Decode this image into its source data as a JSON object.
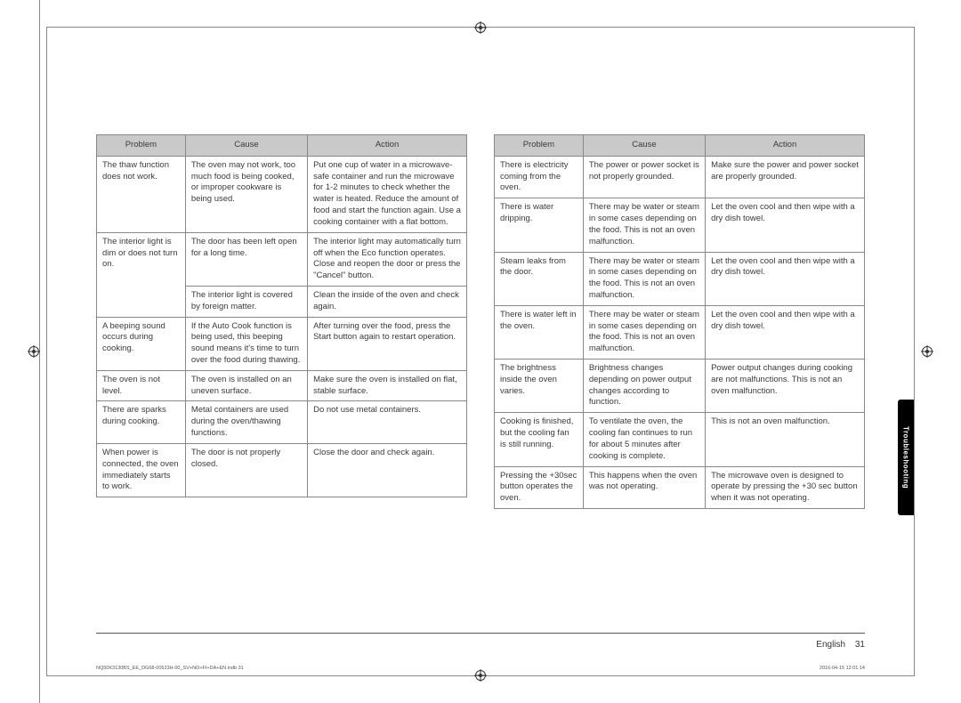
{
  "headers": {
    "problem": "Problem",
    "cause": "Cause",
    "action": "Action"
  },
  "left_table": [
    {
      "problem": "The thaw function does not work.",
      "cause": "The oven may not work, too much food is being cooked, or improper cookware is being used.",
      "action": "Put one cup of water in a microwave-safe container and run the microwave for 1-2 minutes to check whether the water is heated. Reduce the amount of food and start the function again. Use a cooking container with a flat bottom."
    },
    {
      "problem": "The interior light is dim or does not turn on.",
      "rowspan_problem": 2,
      "cause": "The door has been left open for a long time.",
      "action": "The interior light may automatically turn off when the Eco function operates. Close and reopen the door or press the \"Cancel\" button."
    },
    {
      "cause": "The interior light is covered by foreign matter.",
      "action": "Clean the inside of the oven and check again."
    },
    {
      "problem": "A beeping sound occurs during cooking.",
      "cause": "If the Auto Cook function is being used, this beeping sound means it's time to turn over the food during thawing.",
      "action": "After turning over the food, press the Start button again to restart operation."
    },
    {
      "problem": "The oven is not level.",
      "cause": "The oven is installed on an uneven surface.",
      "action": "Make sure the oven is installed on flat, stable surface."
    },
    {
      "problem": "There are sparks during cooking.",
      "cause": "Metal containers are used during the oven/thawing functions.",
      "action": "Do not use metal containers."
    },
    {
      "problem": "When power is connected, the oven immediately starts to work.",
      "cause": "The door is not properly closed.",
      "action": "Close the door and check again."
    }
  ],
  "right_table": [
    {
      "problem": "There is electricity coming from the oven.",
      "cause": "The power or power socket is not properly grounded.",
      "action": "Make sure the power and power socket are properly grounded."
    },
    {
      "problem": "There is water dripping.",
      "cause": "There may be water or steam in some cases depending on the food. This is not an oven malfunction.",
      "action": "Let the oven cool and then wipe with a dry dish towel."
    },
    {
      "problem": "Steam leaks from the door.",
      "cause": "There may be water or steam in some cases depending on the food. This is not an oven malfunction.",
      "action": "Let the oven cool and then wipe with a dry dish towel."
    },
    {
      "problem": "There is water left in the oven.",
      "cause": "There may be water or steam in some cases depending on the food. This is not an oven malfunction.",
      "action": "Let the oven cool and then wipe with a dry dish towel."
    },
    {
      "problem": "The brightness inside the oven varies.",
      "cause": "Brightness changes depending on power output changes according to function.",
      "action": "Power output changes during cooking are not malfunctions. This is not an oven malfunction."
    },
    {
      "problem": "Cooking is finished, but the cooling fan is still running.",
      "cause": "To ventilate the oven, the cooling fan continues to run for about 5 minutes after cooking is complete.",
      "action": "This is not an oven malfunction."
    },
    {
      "problem": "Pressing the +30sec button operates the oven.",
      "cause": "This happens when the oven was not operating.",
      "action": "The microwave oven is designed to operate by pressing the +30 sec button when it was not operating."
    }
  ],
  "side_tab": "Troubleshooting",
  "footer": {
    "language": "English",
    "page_number": "31"
  },
  "imprint": {
    "left": "NQ50K3130BS_EE_DG68-00523H-00_SV+NO+FI+DA+EN.indb   31",
    "right": "2016-04-15   12:01:14"
  }
}
